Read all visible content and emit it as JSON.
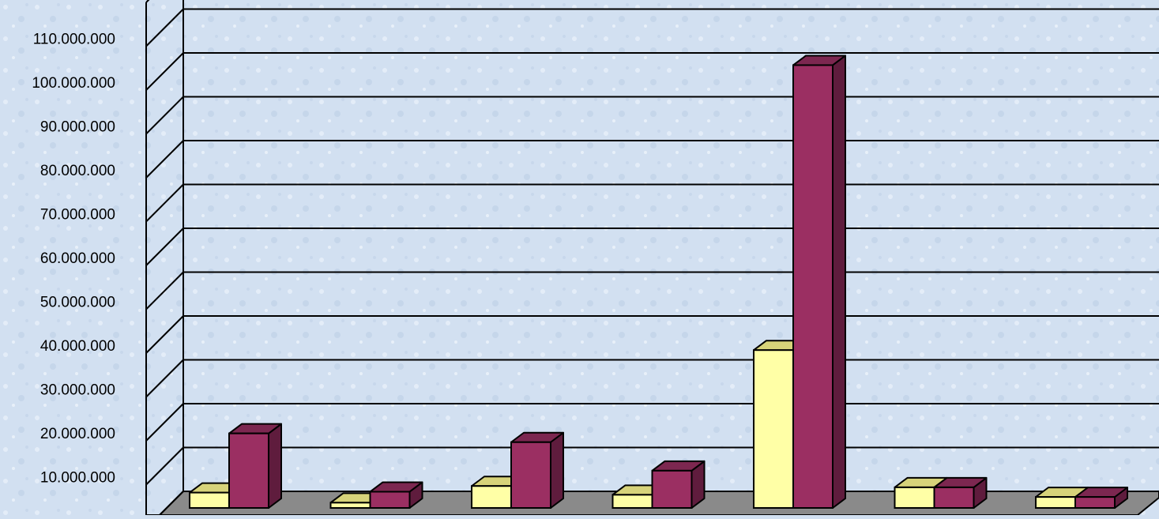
{
  "chart_data": {
    "type": "bar",
    "title": "",
    "xlabel": "",
    "ylabel": "",
    "categories": [
      "",
      "",
      "",
      "",
      "",
      "",
      ""
    ],
    "y_ticks": [
      "10.000.000",
      "20.000.000",
      "30.000.000",
      "40.000.000",
      "50.000.000",
      "60.000.000",
      "70.000.000",
      "80.000.000",
      "90.000.000",
      "100.000.000",
      "110.000.000"
    ],
    "ylim": [
      0,
      110000000
    ],
    "grid": true,
    "three_d": true,
    "series": [
      {
        "values": [
          3500000,
          1200000,
          5000000,
          3000000,
          36000000,
          4700000,
          2500000
        ],
        "colors": {
          "front": "#ffffa6",
          "top": "#d7d37a",
          "side": "#b4b060"
        }
      },
      {
        "values": [
          17000000,
          3700000,
          15000000,
          8500000,
          101000000,
          4700000,
          2500000
        ],
        "colors": {
          "front": "#9b2f62",
          "top": "#7c2750",
          "side": "#5f1c3d"
        }
      }
    ],
    "colors": {
      "background": "#d2e0f1",
      "floor": "#8a8a8a",
      "gridline": "#000000",
      "axis_label": "#000000"
    }
  }
}
